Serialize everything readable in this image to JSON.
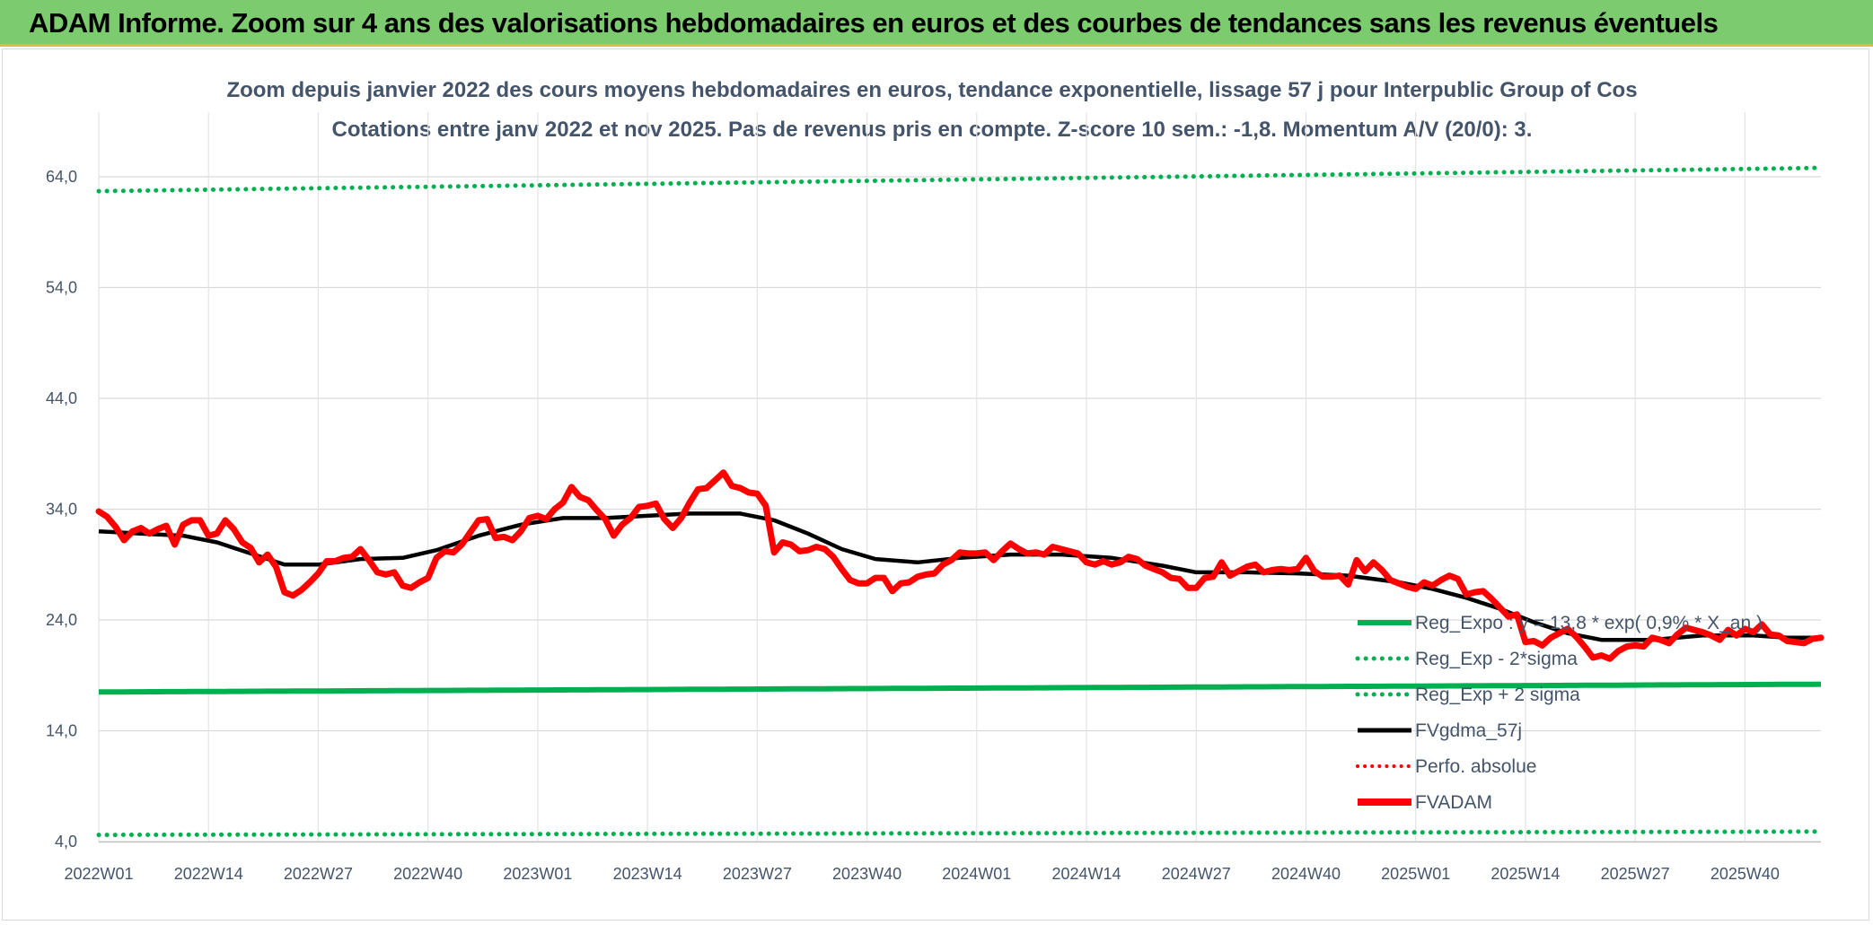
{
  "header": {
    "title": "ADAM Informe. Zoom sur 4 ans des valorisations hebdomadaires en euros et des courbes de tendances sans les revenus éventuels"
  },
  "chart_data": {
    "type": "line",
    "title_line1": "Zoom depuis janvier 2022 des cours moyens hebdomadaires en euros, tendance exponentielle, lissage 57 j pour Interpublic Group of Cos",
    "title_line2": "Cotations entre janv 2022 et nov 2025. Pas de revenus pris en compte. Z-score 10 sem.: -1,8. Momentum A/V (20/0): 3.",
    "xlabel": "",
    "ylabel": "",
    "ylim": [
      4,
      68
    ],
    "y_ticks": [
      "64,0",
      "54,0",
      "44,0",
      "34,0",
      "24,0",
      "14,0",
      "4,0"
    ],
    "y_tick_values": [
      64,
      54,
      44,
      34,
      24,
      14,
      4
    ],
    "x_ticks": [
      "2022W01",
      "2022W14",
      "2022W27",
      "2022W40",
      "2023W01",
      "2023W14",
      "2023W27",
      "2023W40",
      "2024W01",
      "2024W14",
      "2024W27",
      "2024W40",
      "2025W01",
      "2025W14",
      "2025W27",
      "2025W40"
    ],
    "x_tick_weeks": [
      0,
      13,
      26,
      39,
      52,
      65,
      78,
      91,
      104,
      117,
      130,
      143,
      156,
      169,
      182,
      195
    ],
    "n_weeks": 205,
    "grid": true,
    "legend_position": "bottom-right",
    "series": [
      {
        "name": "Reg_Expo : y = 13,8 * exp( 0,9% * X_an )",
        "color": "#00b050",
        "style": "solid",
        "start": 17.5,
        "end": 18.2
      },
      {
        "name": "Reg_Exp - 2*sigma",
        "color": "#00b050",
        "style": "dotted",
        "start": 4.6,
        "end": 4.9
      },
      {
        "name": "Reg_Exp + 2 sigma",
        "color": "#00b050",
        "style": "dotted",
        "start": 62.7,
        "end": 64.8
      },
      {
        "name": "FVgdma_57j",
        "color": "#000000",
        "style": "solid",
        "points": [
          [
            0,
            32.0
          ],
          [
            5,
            31.8
          ],
          [
            10,
            31.6
          ],
          [
            14,
            31.0
          ],
          [
            18,
            30.0
          ],
          [
            22,
            29.0
          ],
          [
            26,
            29.0
          ],
          [
            31,
            29.5
          ],
          [
            36,
            29.6
          ],
          [
            40,
            30.3
          ],
          [
            45,
            31.6
          ],
          [
            50,
            32.6
          ],
          [
            55,
            33.2
          ],
          [
            60,
            33.2
          ],
          [
            65,
            33.4
          ],
          [
            70,
            33.6
          ],
          [
            76,
            33.6
          ],
          [
            80,
            33.0
          ],
          [
            84,
            31.8
          ],
          [
            88,
            30.4
          ],
          [
            92,
            29.5
          ],
          [
            97,
            29.2
          ],
          [
            102,
            29.6
          ],
          [
            108,
            29.9
          ],
          [
            114,
            29.9
          ],
          [
            120,
            29.6
          ],
          [
            126,
            28.9
          ],
          [
            130,
            28.3
          ],
          [
            136,
            28.3
          ],
          [
            142,
            28.2
          ],
          [
            148,
            28.0
          ],
          [
            154,
            27.4
          ],
          [
            158,
            26.8
          ],
          [
            162,
            26.0
          ],
          [
            166,
            25.0
          ],
          [
            170,
            23.8
          ],
          [
            174,
            22.8
          ],
          [
            178,
            22.2
          ],
          [
            184,
            22.2
          ],
          [
            190,
            22.6
          ],
          [
            196,
            22.6
          ],
          [
            200,
            22.4
          ],
          [
            204,
            22.4
          ]
        ]
      },
      {
        "name": "Perfo. absolue",
        "color": "#ff0000",
        "style": "dotted"
      },
      {
        "name": "FVADAM",
        "color": "#ff0000",
        "style": "solid",
        "points": [
          [
            0,
            33.8
          ],
          [
            1,
            33.3
          ],
          [
            2,
            32.4
          ],
          [
            3,
            31.2
          ],
          [
            4,
            32.0
          ],
          [
            5,
            32.3
          ],
          [
            6,
            31.8
          ],
          [
            7,
            32.2
          ],
          [
            8,
            32.5
          ],
          [
            9,
            30.8
          ],
          [
            10,
            32.6
          ],
          [
            11,
            33.0
          ],
          [
            12,
            33.0
          ],
          [
            13,
            31.6
          ],
          [
            14,
            31.8
          ],
          [
            15,
            33.0
          ],
          [
            16,
            32.2
          ],
          [
            17,
            31.0
          ],
          [
            18,
            30.5
          ],
          [
            19,
            29.2
          ],
          [
            20,
            29.9
          ],
          [
            21,
            28.8
          ],
          [
            22,
            26.5
          ],
          [
            23,
            26.2
          ],
          [
            24,
            26.7
          ],
          [
            25,
            27.4
          ],
          [
            26,
            28.2
          ],
          [
            27,
            29.3
          ],
          [
            28,
            29.3
          ],
          [
            29,
            29.6
          ],
          [
            30,
            29.7
          ],
          [
            31,
            30.4
          ],
          [
            32,
            29.4
          ],
          [
            33,
            28.3
          ],
          [
            34,
            28.1
          ],
          [
            35,
            28.3
          ],
          [
            36,
            27.1
          ],
          [
            37,
            26.9
          ],
          [
            38,
            27.4
          ],
          [
            39,
            27.8
          ],
          [
            40,
            29.6
          ],
          [
            41,
            30.2
          ],
          [
            42,
            30.1
          ],
          [
            43,
            30.8
          ],
          [
            44,
            31.9
          ],
          [
            45,
            33.0
          ],
          [
            46,
            33.1
          ],
          [
            47,
            31.4
          ],
          [
            48,
            31.5
          ],
          [
            49,
            31.2
          ],
          [
            50,
            32.0
          ],
          [
            51,
            33.2
          ],
          [
            52,
            33.4
          ],
          [
            53,
            33.1
          ],
          [
            54,
            34.0
          ],
          [
            55,
            34.6
          ],
          [
            56,
            36.0
          ],
          [
            57,
            35.1
          ],
          [
            58,
            34.8
          ],
          [
            59,
            33.9
          ],
          [
            60,
            33.1
          ],
          [
            61,
            31.6
          ],
          [
            62,
            32.6
          ],
          [
            63,
            33.2
          ],
          [
            64,
            34.2
          ],
          [
            65,
            34.3
          ],
          [
            66,
            34.5
          ],
          [
            67,
            33.1
          ],
          [
            68,
            32.3
          ],
          [
            69,
            33.2
          ],
          [
            70,
            34.6
          ],
          [
            71,
            35.8
          ],
          [
            72,
            35.9
          ],
          [
            73,
            36.6
          ],
          [
            74,
            37.3
          ],
          [
            75,
            36.1
          ],
          [
            76,
            35.9
          ],
          [
            77,
            35.5
          ],
          [
            78,
            35.4
          ],
          [
            79,
            34.3
          ],
          [
            80,
            30.1
          ],
          [
            81,
            31.0
          ],
          [
            82,
            30.8
          ],
          [
            83,
            30.2
          ],
          [
            84,
            30.3
          ],
          [
            85,
            30.6
          ],
          [
            86,
            30.4
          ],
          [
            87,
            29.7
          ],
          [
            88,
            28.6
          ],
          [
            89,
            27.6
          ],
          [
            90,
            27.3
          ],
          [
            91,
            27.3
          ],
          [
            92,
            27.8
          ],
          [
            93,
            27.8
          ],
          [
            94,
            26.6
          ],
          [
            95,
            27.3
          ],
          [
            96,
            27.4
          ],
          [
            97,
            27.9
          ],
          [
            98,
            28.1
          ],
          [
            99,
            28.2
          ],
          [
            100,
            29.0
          ],
          [
            101,
            29.4
          ],
          [
            102,
            30.1
          ],
          [
            103,
            30.0
          ],
          [
            104,
            30.0
          ],
          [
            105,
            30.1
          ],
          [
            106,
            29.4
          ],
          [
            107,
            30.2
          ],
          [
            108,
            30.9
          ],
          [
            109,
            30.4
          ],
          [
            110,
            30.0
          ],
          [
            111,
            30.1
          ],
          [
            112,
            29.9
          ],
          [
            113,
            30.6
          ],
          [
            114,
            30.4
          ],
          [
            115,
            30.2
          ],
          [
            116,
            30.0
          ],
          [
            117,
            29.2
          ],
          [
            118,
            29.0
          ],
          [
            119,
            29.3
          ],
          [
            120,
            29.0
          ],
          [
            121,
            29.2
          ],
          [
            122,
            29.7
          ],
          [
            123,
            29.5
          ],
          [
            124,
            28.9
          ],
          [
            125,
            28.6
          ],
          [
            126,
            28.3
          ],
          [
            127,
            27.8
          ],
          [
            128,
            27.7
          ],
          [
            129,
            26.9
          ],
          [
            130,
            26.9
          ],
          [
            131,
            27.8
          ],
          [
            132,
            27.9
          ],
          [
            133,
            29.2
          ],
          [
            134,
            28.0
          ],
          [
            135,
            28.4
          ],
          [
            136,
            28.8
          ],
          [
            137,
            29.0
          ],
          [
            138,
            28.3
          ],
          [
            139,
            28.5
          ],
          [
            140,
            28.6
          ],
          [
            141,
            28.5
          ],
          [
            142,
            28.6
          ],
          [
            143,
            29.6
          ],
          [
            144,
            28.4
          ],
          [
            145,
            27.9
          ],
          [
            146,
            27.9
          ],
          [
            147,
            28.0
          ],
          [
            148,
            27.2
          ],
          [
            149,
            29.4
          ],
          [
            150,
            28.4
          ],
          [
            151,
            29.2
          ],
          [
            152,
            28.5
          ],
          [
            153,
            27.6
          ],
          [
            154,
            27.3
          ],
          [
            155,
            27.0
          ],
          [
            156,
            26.8
          ],
          [
            157,
            27.4
          ],
          [
            158,
            27.1
          ],
          [
            159,
            27.6
          ],
          [
            160,
            28.0
          ],
          [
            161,
            27.7
          ],
          [
            162,
            26.3
          ],
          [
            163,
            26.5
          ],
          [
            164,
            26.6
          ],
          [
            165,
            25.9
          ],
          [
            166,
            25.1
          ],
          [
            167,
            24.3
          ],
          [
            168,
            24.5
          ],
          [
            169,
            22.0
          ],
          [
            170,
            22.1
          ],
          [
            171,
            21.7
          ],
          [
            172,
            22.4
          ],
          [
            173,
            22.8
          ],
          [
            174,
            23.2
          ],
          [
            175,
            22.5
          ],
          [
            176,
            21.6
          ],
          [
            177,
            20.6
          ],
          [
            178,
            20.8
          ],
          [
            179,
            20.5
          ],
          [
            180,
            21.2
          ],
          [
            181,
            21.6
          ],
          [
            182,
            21.7
          ],
          [
            183,
            21.6
          ],
          [
            184,
            22.4
          ],
          [
            185,
            22.2
          ],
          [
            186,
            21.9
          ],
          [
            187,
            22.7
          ],
          [
            188,
            23.3
          ],
          [
            189,
            23.1
          ],
          [
            190,
            22.9
          ],
          [
            191,
            22.6
          ],
          [
            192,
            22.2
          ],
          [
            193,
            23.1
          ],
          [
            194,
            22.6
          ],
          [
            195,
            23.2
          ],
          [
            196,
            22.9
          ],
          [
            197,
            23.6
          ],
          [
            198,
            22.7
          ],
          [
            199,
            22.6
          ],
          [
            200,
            22.1
          ],
          [
            201,
            22.0
          ],
          [
            202,
            21.9
          ],
          [
            203,
            22.3
          ],
          [
            204,
            22.4
          ]
        ]
      }
    ]
  }
}
